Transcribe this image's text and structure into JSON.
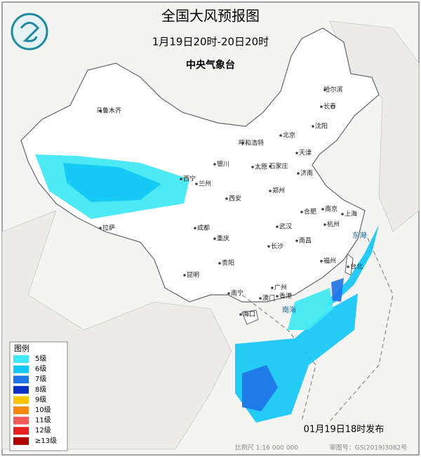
{
  "header": {
    "title": "全国大风预报图",
    "period": "1月19日20时-20日20时",
    "issuer": "中央气象台"
  },
  "legend": {
    "title": "图例",
    "items": [
      {
        "label": "5级",
        "color": "#3fe8f2"
      },
      {
        "label": "6级",
        "color": "#12c6f5"
      },
      {
        "label": "7级",
        "color": "#1d74e6"
      },
      {
        "label": "8级",
        "color": "#0a2fc4"
      },
      {
        "label": "9级",
        "color": "#f7c600"
      },
      {
        "label": "10级",
        "color": "#f58a10"
      },
      {
        "label": "11级",
        "color": "#f35a5a"
      },
      {
        "label": "12级",
        "color": "#e62020"
      },
      {
        "label": "≥13级",
        "color": "#b00000"
      }
    ]
  },
  "cities": [
    "乌鲁木齐",
    "哈尔滨",
    "长春",
    "沈阳",
    "北京",
    "天津",
    "呼和浩特",
    "石家庄",
    "太原",
    "济南",
    "银川",
    "西宁",
    "兰州",
    "郑州",
    "西安",
    "合肥",
    "南京",
    "上海",
    "杭州",
    "武汉",
    "成都",
    "重庆",
    "长沙",
    "南昌",
    "福州",
    "台北",
    "贵阳",
    "昆明",
    "广州",
    "香港",
    "澳门",
    "海口",
    "南宁",
    "拉萨"
  ],
  "seas": [
    "东海",
    "南海"
  ],
  "footer": {
    "issued": "01月19日18时发布",
    "scale": "比例尺 1:16 000 000",
    "review": "审图号：GS(2019)3082号"
  }
}
